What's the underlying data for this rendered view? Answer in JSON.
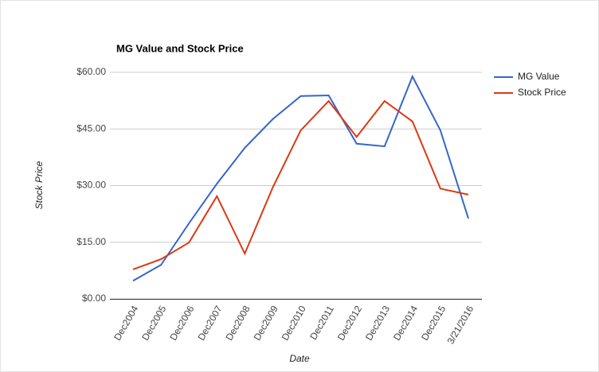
{
  "chart_data": {
    "type": "line",
    "title": "MG Value and Stock Price",
    "x_label": "Date",
    "y_label": "Stock Price",
    "categories": [
      "Dec2004",
      "Dec2005",
      "Dec2006",
      "Dec2007",
      "Dec2008",
      "Dec2009",
      "Dec2010",
      "Dec2011",
      "Dec2012",
      "Dec2013",
      "Dec2014",
      "Dec2015",
      "3/21/2016"
    ],
    "series": [
      {
        "name": "MG Value",
        "color": "#3366cc",
        "values": [
          4.8,
          9.0,
          20.0,
          30.5,
          40.0,
          47.6,
          53.7,
          53.9,
          41.1,
          40.4,
          58.9,
          44.6,
          21.3
        ]
      },
      {
        "name": "Stock Price",
        "color": "#dc3912",
        "values": [
          7.8,
          10.5,
          14.9,
          27.2,
          12.0,
          29.5,
          44.6,
          52.4,
          42.9,
          52.4,
          47.0,
          29.2,
          27.6
        ]
      }
    ],
    "ylim": [
      0,
      60
    ],
    "yticks": [
      {
        "value": 0,
        "label": "$0.00"
      },
      {
        "value": 15,
        "label": "$15.00"
      },
      {
        "value": 30,
        "label": "$30.00"
      },
      {
        "value": 45,
        "label": "$45.00"
      },
      {
        "value": 60,
        "label": "$60.00"
      }
    ],
    "grid": true,
    "legend": "right"
  }
}
